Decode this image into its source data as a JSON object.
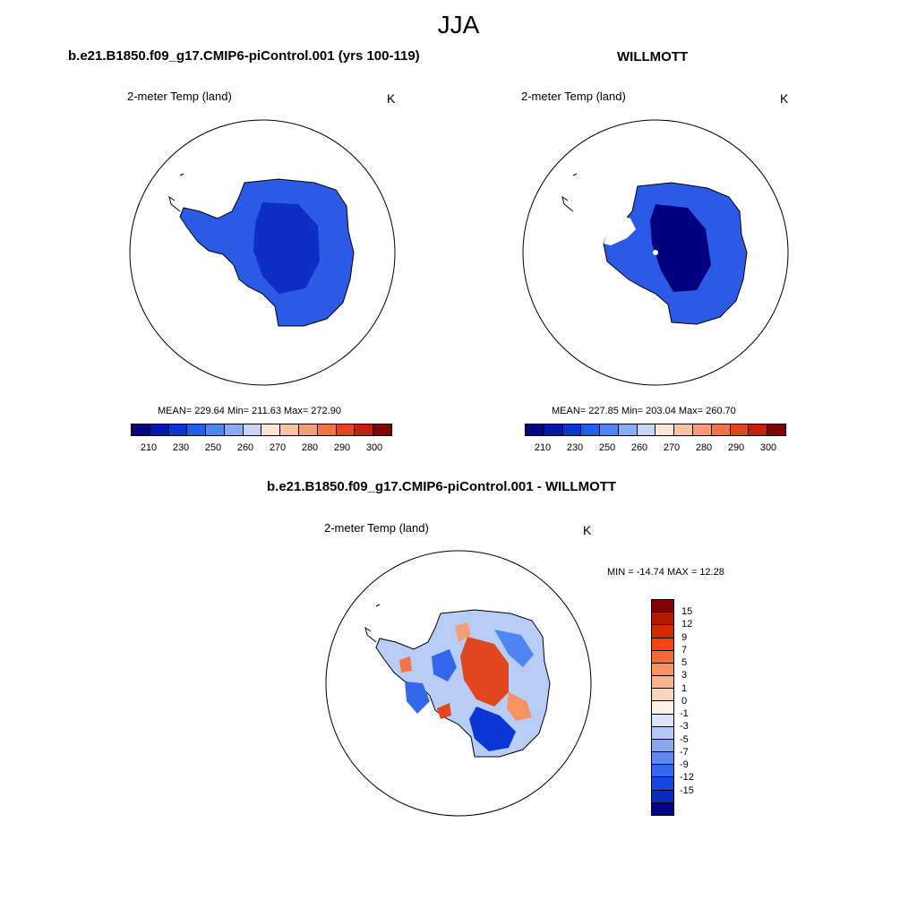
{
  "title": "JJA",
  "panels": [
    {
      "case": "b.e21.B1850.f09_g17.CMIP6-piControl.001 (yrs 100-119)",
      "variable": "2-meter Temp (land)",
      "units": "K",
      "stats": "MEAN= 229.64  Min= 211.63  Max= 272.90"
    },
    {
      "case": "WILLMOTT",
      "variable": "2-meter Temp (land)",
      "units": "K",
      "stats": "MEAN= 227.85  Min= 203.04  Max= 260.70"
    },
    {
      "case": "b.e21.B1850.f09_g17.CMIP6-piControl.001 - WILLMOTT",
      "variable": "2-meter Temp (land)",
      "units": "K",
      "stats": "MIN = -14.74 MAX =  12.28"
    }
  ],
  "abs_colorbar": {
    "colors": [
      "#00007f",
      "#0016a8",
      "#0b36d6",
      "#2060ee",
      "#4f86f4",
      "#8aacf6",
      "#c7d6f8",
      "#fde6d6",
      "#f8c2a6",
      "#f59d79",
      "#f07446",
      "#e2461f",
      "#bf2208",
      "#800000"
    ],
    "ticks": [
      "210",
      "230",
      "250",
      "260",
      "270",
      "280",
      "290",
      "300"
    ]
  },
  "diff_colorbar": {
    "colors": [
      "#800000",
      "#b01a00",
      "#d42a00",
      "#f0460f",
      "#f56a33",
      "#f89062",
      "#f9b38f",
      "#fbd6bd",
      "#fdf0e8",
      "#d9e4f9",
      "#b2c8f6",
      "#88a9f1",
      "#5f89ef",
      "#3468ec",
      "#1446e0",
      "#0a2bc0",
      "#00008a"
    ],
    "ticks": [
      "15",
      "12",
      "9",
      "7",
      "5",
      "3",
      "1",
      "0",
      "-1",
      "-3",
      "-5",
      "-7",
      "-9",
      "-12",
      "-15"
    ]
  },
  "chart_data": {
    "type": "heatmap",
    "season": "JJA",
    "maps": [
      {
        "name": "b.e21.B1850.f09_g17.CMIP6-piControl.001 (yrs 100-119)",
        "variable": "2-meter Temp (land)",
        "units": "K",
        "mean": 229.64,
        "min": 211.63,
        "max": 272.9
      },
      {
        "name": "WILLMOTT",
        "variable": "2-meter Temp (land)",
        "units": "K",
        "mean": 227.85,
        "min": 203.04,
        "max": 260.7
      },
      {
        "name": "b.e21.B1850.f09_g17.CMIP6-piControl.001 - WILLMOTT",
        "variable": "2-meter Temp (land)",
        "units": "K",
        "min": -14.74,
        "max": 12.28
      }
    ],
    "abs_levels": [
      210,
      230,
      250,
      260,
      270,
      280,
      290,
      300
    ],
    "diff_levels": [
      -15,
      -12,
      -9,
      -7,
      -5,
      -3,
      -1,
      0,
      1,
      3,
      5,
      7,
      9,
      12,
      15
    ]
  }
}
